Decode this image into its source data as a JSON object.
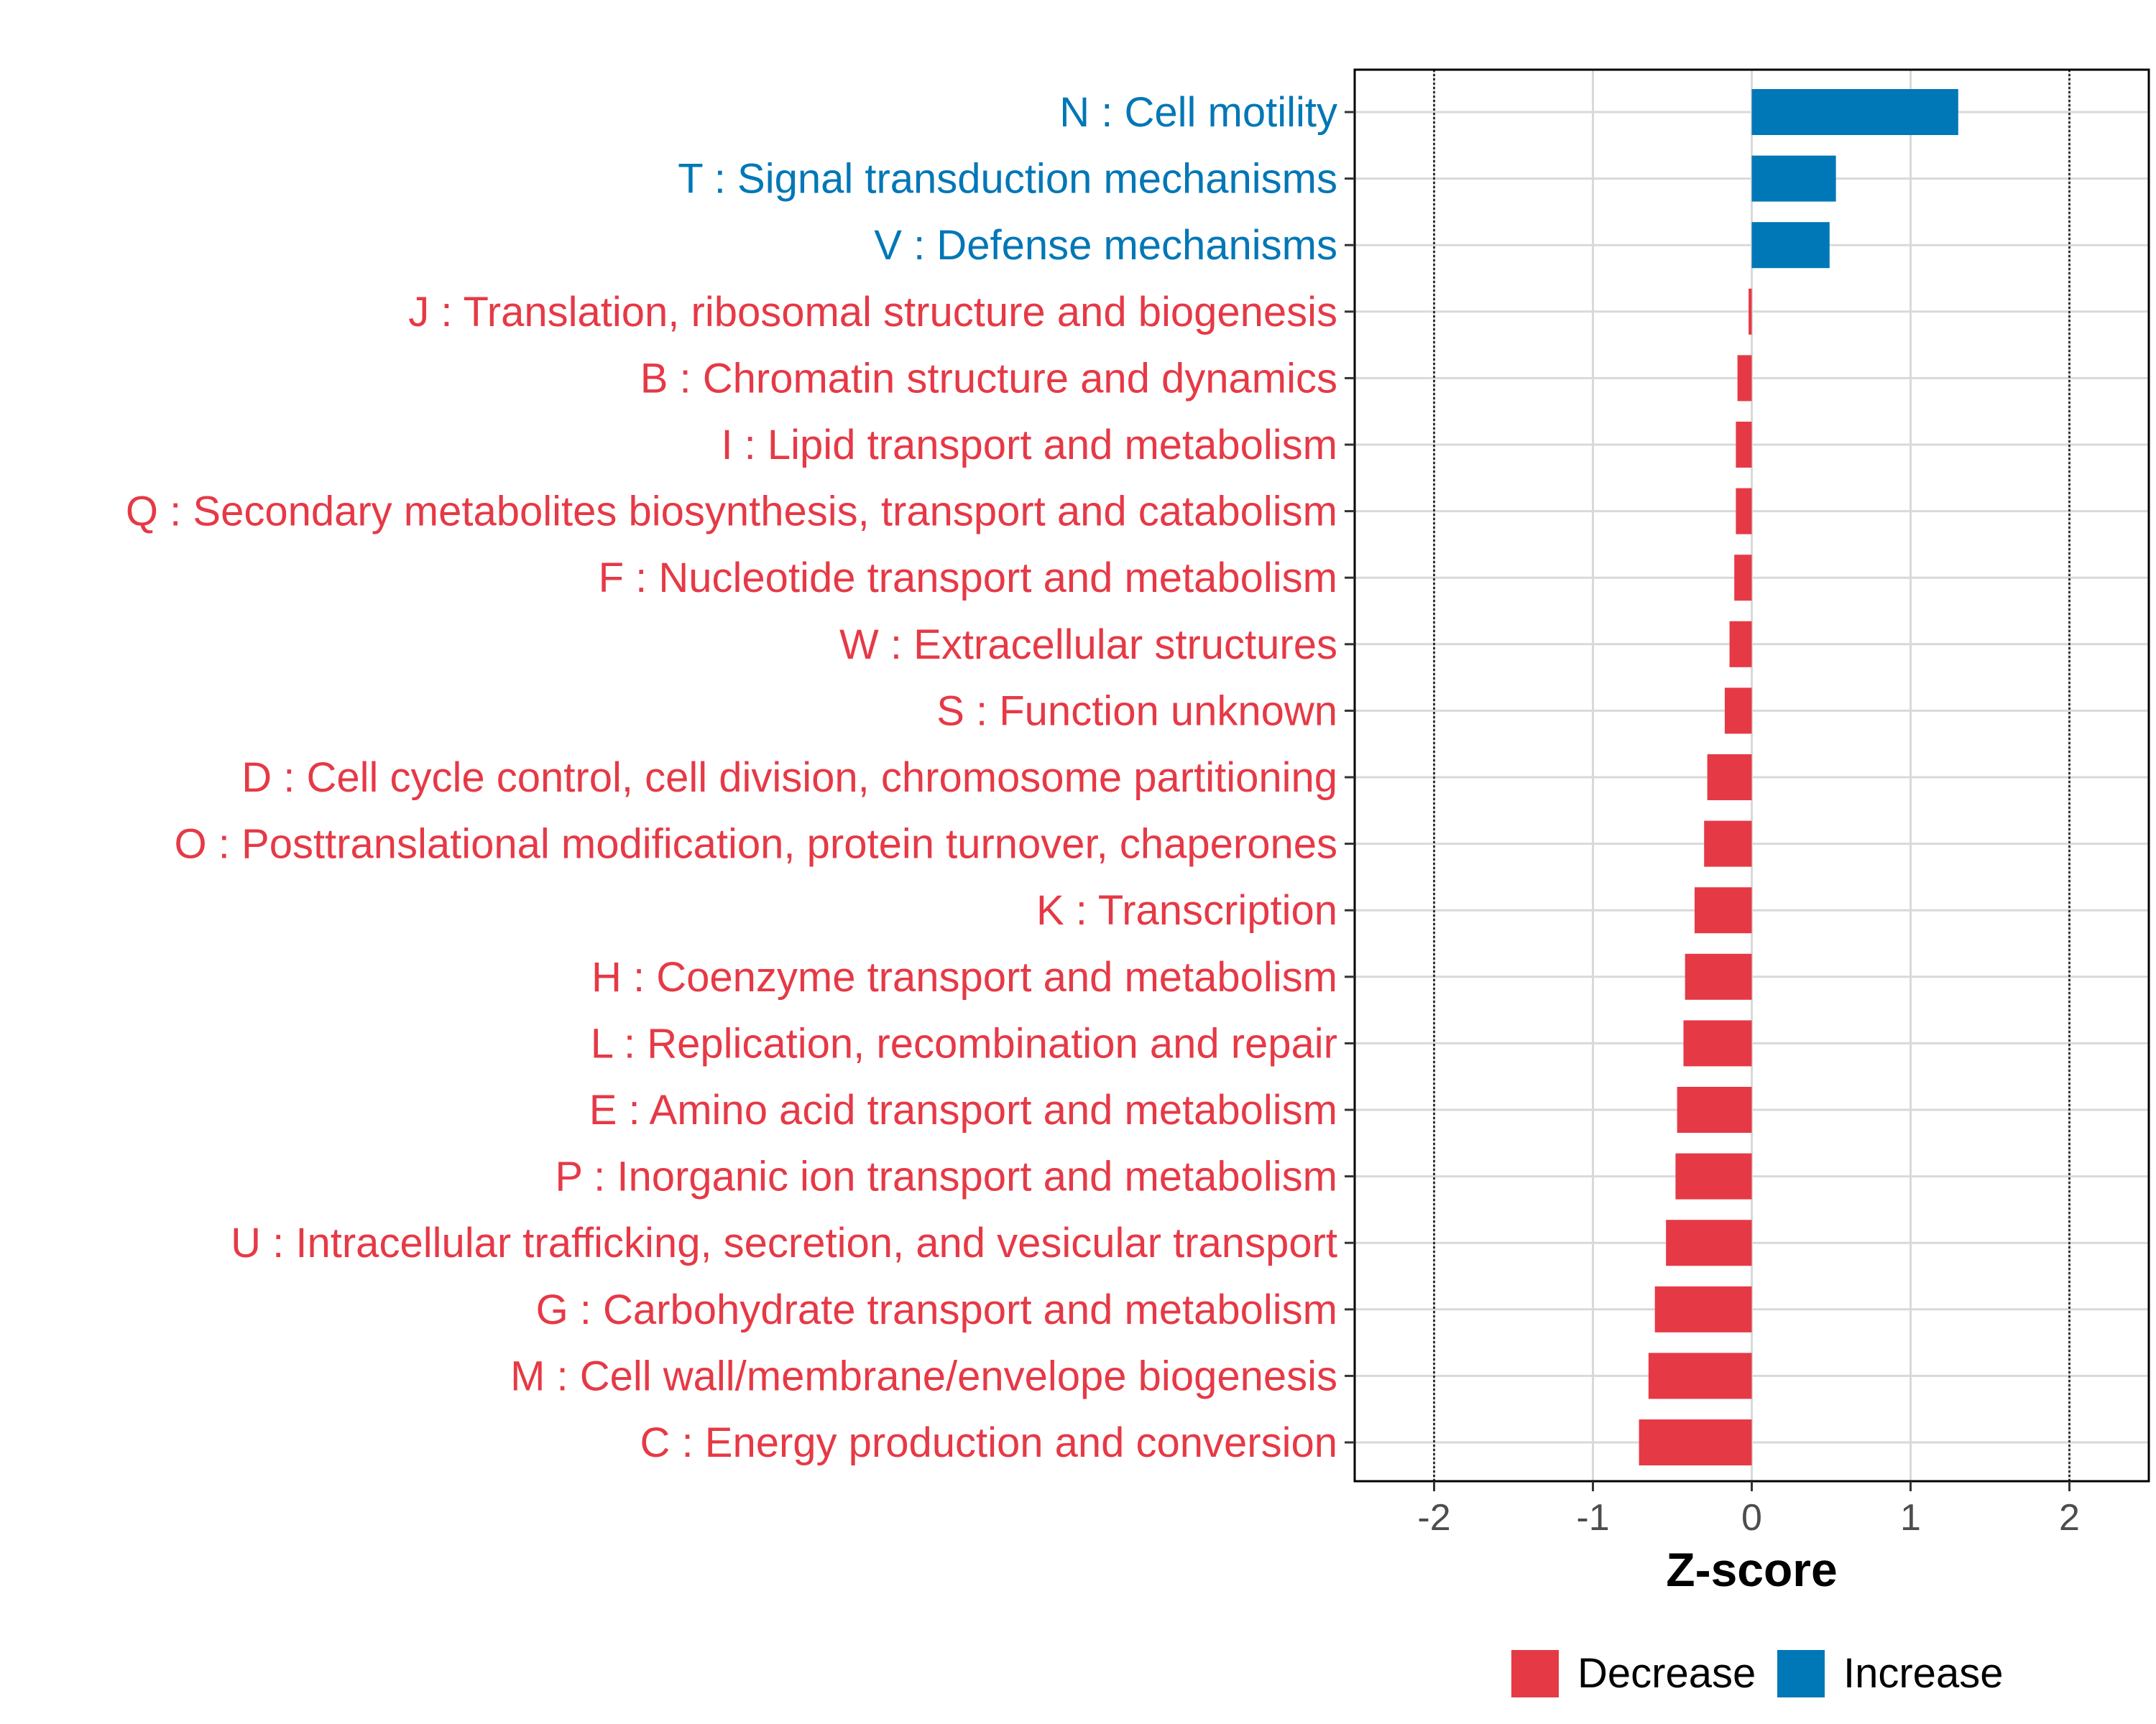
{
  "colors": {
    "decrease": "#E63946",
    "increase": "#0077B6",
    "grid": "#d9d9d9",
    "panel_border": "#000000",
    "threshold_line": "#333333"
  },
  "chart_data": {
    "type": "bar",
    "orientation": "horizontal",
    "xlabel": "Z-score",
    "xlim": [
      -2.5,
      2.5
    ],
    "x_ticks": [
      -2,
      -1,
      0,
      1,
      2
    ],
    "x_tick_labels": [
      "-2",
      "-1",
      "0",
      "1",
      "2"
    ],
    "threshold_lines": [
      -2,
      2
    ],
    "grid": true,
    "legend_position": "bottom",
    "categories": [
      "N : Cell motility",
      "T : Signal transduction mechanisms",
      "V : Defense mechanisms",
      "J : Translation, ribosomal structure and biogenesis",
      "B : Chromatin structure and dynamics",
      "I : Lipid transport and metabolism",
      "Q : Secondary metabolites biosynthesis, transport and catabolism",
      "F : Nucleotide transport and metabolism",
      "W : Extracellular structures",
      "S : Function unknown",
      "D : Cell cycle control, cell division, chromosome partitioning",
      "O : Posttranslational modification, protein turnover, chaperones",
      "K : Transcription",
      "H : Coenzyme transport and metabolism",
      "L : Replication, recombination and repair",
      "E : Amino acid transport and metabolism",
      "P : Inorganic ion transport and metabolism",
      "U : Intracellular trafficking, secretion, and vesicular transport",
      "G : Carbohydrate transport and metabolism",
      "M : Cell wall/membrane/envelope biogenesis",
      "C : Energy production and conversion"
    ],
    "values": [
      1.3,
      0.53,
      0.49,
      -0.02,
      -0.09,
      -0.1,
      -0.1,
      -0.11,
      -0.14,
      -0.17,
      -0.28,
      -0.3,
      -0.36,
      -0.42,
      -0.43,
      -0.47,
      -0.48,
      -0.54,
      -0.61,
      -0.65,
      -0.71
    ],
    "groups": [
      "Increase",
      "Increase",
      "Increase",
      "Decrease",
      "Decrease",
      "Decrease",
      "Decrease",
      "Decrease",
      "Decrease",
      "Decrease",
      "Decrease",
      "Decrease",
      "Decrease",
      "Decrease",
      "Decrease",
      "Decrease",
      "Decrease",
      "Decrease",
      "Decrease",
      "Decrease",
      "Decrease"
    ],
    "legend": [
      {
        "key": "Decrease",
        "label": "Decrease"
      },
      {
        "key": "Increase",
        "label": "Increase"
      }
    ]
  }
}
